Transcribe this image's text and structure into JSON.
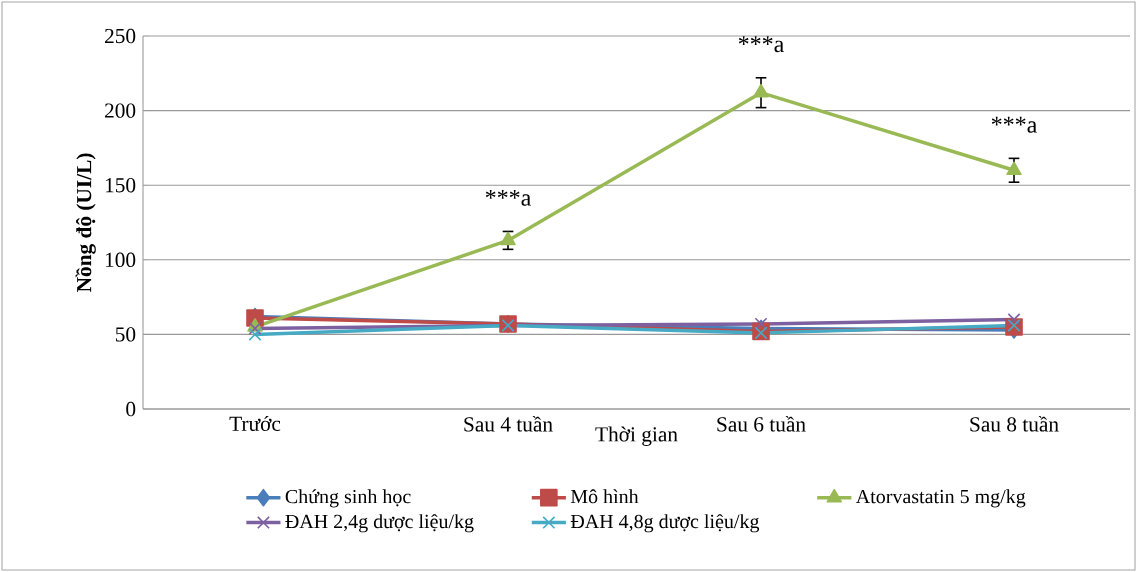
{
  "chart_data": {
    "type": "line",
    "xlabel": "Thời gian",
    "ylabel": "Nồng độ (UI/L)",
    "categories": [
      "Trước",
      "Sau 4 tuần",
      "Sau 6 tuần",
      "Sau 8 tuần"
    ],
    "ylim": [
      0,
      250
    ],
    "yticks": [
      0,
      50,
      100,
      150,
      200,
      250
    ],
    "grid": "y",
    "legend": "bottom",
    "line_style": "solid",
    "series": [
      {
        "name": "Chứng sinh học",
        "color": "#4a7ebb",
        "marker": "diamond",
        "values": [
          62,
          57,
          54,
          53
        ]
      },
      {
        "name": "Mô hình",
        "color": "#be4b48",
        "marker": "square",
        "values": [
          61,
          57,
          52,
          55
        ]
      },
      {
        "name": "Atorvastatin 5 mg/kg",
        "color": "#98b954",
        "marker": "triangle",
        "values": [
          55,
          113,
          212,
          160
        ],
        "errors": [
          null,
          6,
          10,
          8
        ]
      },
      {
        "name": "ĐAH 2,4g dược liệu/kg",
        "color": "#7d60a0",
        "marker": "cross",
        "values": [
          54,
          56,
          57,
          60
        ]
      },
      {
        "name": "ĐAH 4,8g dược liệu/kg",
        "color": "#46aac5",
        "marker": "cross",
        "values": [
          50,
          56,
          51,
          56
        ]
      }
    ],
    "annotations": [
      "***a",
      "***a",
      "***a"
    ]
  }
}
